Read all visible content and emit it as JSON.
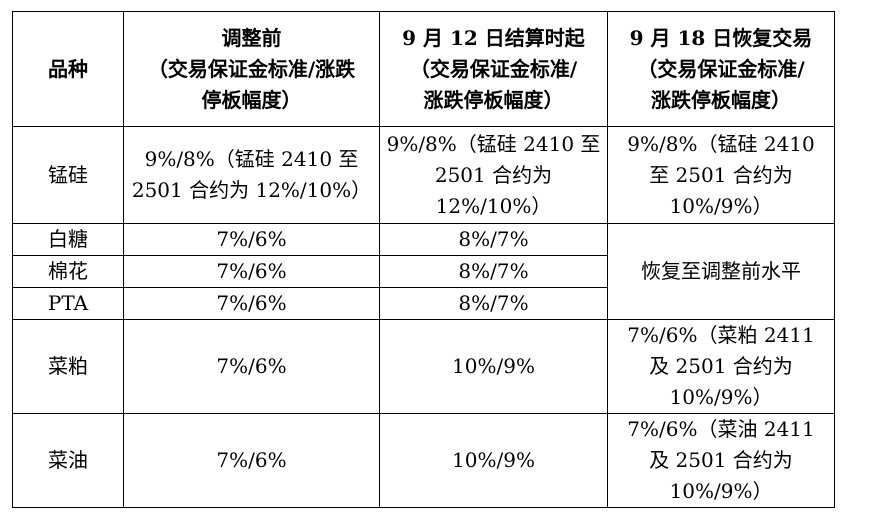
{
  "table": {
    "headers": {
      "variety": "品种",
      "before": {
        "line1": "调整前",
        "line2": "（交易保证金标准/涨跌",
        "line3": "停板幅度）"
      },
      "sep12": {
        "line1": "9 月 12 日结算时起",
        "line2": "（交易保证金标准/",
        "line3": "涨跌停板幅度）"
      },
      "sep18": {
        "line1": "9 月 18 日恢复交易",
        "line2": "（交易保证金标准/",
        "line3": "涨跌停板幅度）"
      }
    },
    "rows": {
      "manganese_silicon": {
        "name": "锰硅",
        "before": {
          "line1": "9%/8%（锰硅 2410 至",
          "line2": "2501 合约为 12%/10%）"
        },
        "sep12": {
          "line1": "9%/8%（锰硅 2410 至",
          "line2": "2501 合约为",
          "line3": "12%/10%）"
        },
        "sep18": {
          "line1": "9%/8%（锰硅 2410",
          "line2": "至 2501 合约为",
          "line3": "10%/9%）"
        }
      },
      "white_sugar": {
        "name": "白糖",
        "before": "7%/6%",
        "sep12": "8%/7%"
      },
      "cotton": {
        "name": "棉花",
        "before": "7%/6%",
        "sep12": "8%/7%"
      },
      "pta": {
        "name": "PTA",
        "before": "7%/6%",
        "sep12": "8%/7%"
      },
      "merged_sep18": "恢复至调整前水平",
      "rapeseed_meal": {
        "name": "菜粕",
        "before": "7%/6%",
        "sep12": "10%/9%",
        "sep18": {
          "line1": "7%/6%（菜粕 2411",
          "line2": "及 2501 合约为",
          "line3": "10%/9%）"
        }
      },
      "rapeseed_oil": {
        "name": "菜油",
        "before": "7%/6%",
        "sep12": "10%/9%",
        "sep18": {
          "line1": "7%/6%（菜油 2411",
          "line2": "及 2501 合约为",
          "line3": "10%/9%）"
        }
      }
    }
  }
}
